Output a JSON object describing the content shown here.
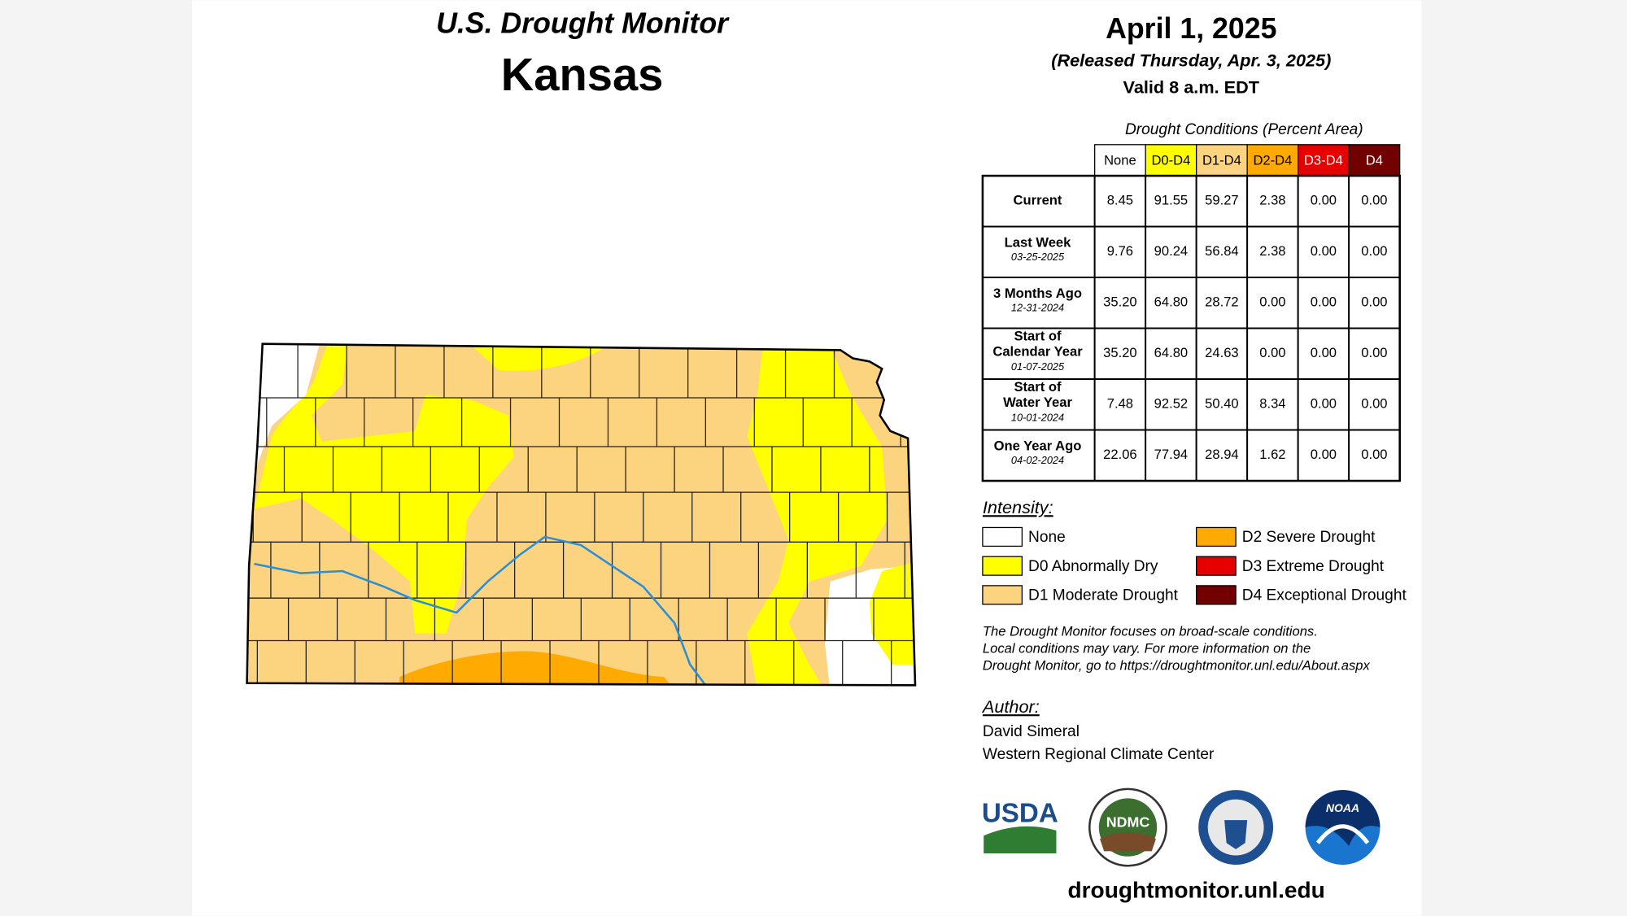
{
  "header": {
    "title": "U.S. Drought Monitor",
    "region": "Kansas",
    "date": "April 1, 2025",
    "released": "(Released Thursday, Apr. 3, 2025)",
    "valid": "Valid 8 a.m. EDT"
  },
  "table": {
    "caption": "Drought Conditions (Percent Area)",
    "columns": [
      "None",
      "D0-D4",
      "D1-D4",
      "D2-D4",
      "D3-D4",
      "D4"
    ],
    "rows": [
      {
        "label": "Current",
        "values": [
          "8.45",
          "91.55",
          "59.27",
          "2.38",
          "0.00",
          "0.00"
        ]
      },
      {
        "label": "Last Week",
        "date": "03-25-2025",
        "values": [
          "9.76",
          "90.24",
          "56.84",
          "2.38",
          "0.00",
          "0.00"
        ]
      },
      {
        "label": "3 Months Ago",
        "date": "12-31-2024",
        "values": [
          "35.20",
          "64.80",
          "28.72",
          "0.00",
          "0.00",
          "0.00"
        ]
      },
      {
        "label": "Start of Calendar Year",
        "date": "01-07-2025",
        "values": [
          "35.20",
          "64.80",
          "24.63",
          "0.00",
          "0.00",
          "0.00"
        ]
      },
      {
        "label": "Start of Water Year",
        "date": "10-01-2024",
        "values": [
          "7.48",
          "92.52",
          "50.40",
          "8.34",
          "0.00",
          "0.00"
        ]
      },
      {
        "label": "One Year Ago",
        "date": "04-02-2024",
        "values": [
          "22.06",
          "77.94",
          "28.94",
          "1.62",
          "0.00",
          "0.00"
        ]
      }
    ]
  },
  "legend": {
    "title": "Intensity:",
    "items": [
      {
        "label": "None",
        "color": "#ffffff"
      },
      {
        "label": "D0 Abnormally Dry",
        "color": "#ffff00"
      },
      {
        "label": "D1 Moderate Drought",
        "color": "#fcd37f"
      },
      {
        "label": "D2 Severe Drought",
        "color": "#ffaa00"
      },
      {
        "label": "D3 Extreme Drought",
        "color": "#e60000"
      },
      {
        "label": "D4 Exceptional Drought",
        "color": "#730000"
      }
    ]
  },
  "note": [
    "The Drought Monitor focuses on broad-scale conditions.",
    "Local conditions may vary. For more information on the",
    "Drought Monitor, go to https://droughtmonitor.unl.edu/About.aspx"
  ],
  "author": {
    "title": "Author:",
    "name": "David Simeral",
    "organization": "Western Regional Climate Center"
  },
  "logos": [
    "USDA",
    "NDMC",
    "NOAA"
  ],
  "url": "droughtmonitor.unl.edu"
}
